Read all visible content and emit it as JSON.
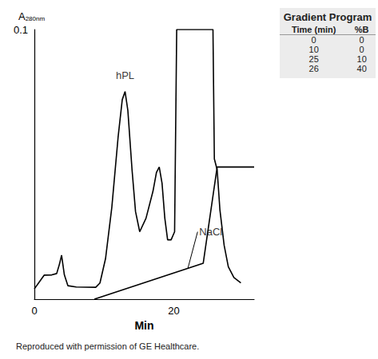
{
  "chart_data": {
    "type": "line",
    "xlabel": "Min",
    "ylabel": "A280nm",
    "xlim": [
      0,
      31.5
    ],
    "xticks": [
      0,
      20
    ],
    "ylim": [
      0,
      0.1
    ],
    "yticks": [
      0.1
    ],
    "grid": false,
    "series": [
      {
        "color": "#000000",
        "x": [
          0,
          0.6,
          1.4,
          2.5,
          3.2,
          3.6,
          3.9,
          4.3,
          4.8,
          6,
          8.8,
          9.4,
          10.2,
          11.1,
          12.0,
          12.6,
          13.0,
          13.4,
          14.0,
          14.5,
          15.1,
          16.0,
          17.0,
          17.5,
          17.9,
          18.3,
          18.7,
          19.1,
          19.6,
          20.1,
          20.4,
          25.6,
          25.8,
          26.2,
          26.6,
          27.2,
          27.8,
          28.6,
          29.6
        ],
        "values": [
          0.0038,
          0.006,
          0.0089,
          0.009,
          0.0095,
          0.013,
          0.0163,
          0.009,
          0.005,
          0.0045,
          0.0044,
          0.006,
          0.015,
          0.034,
          0.06,
          0.074,
          0.077,
          0.07,
          0.048,
          0.0325,
          0.025,
          0.03,
          0.04,
          0.047,
          0.049,
          0.043,
          0.03,
          0.022,
          0.022,
          0.025,
          0.1,
          0.1,
          0.052,
          0.048,
          0.033,
          0.02,
          0.012,
          0.008,
          0.006
        ]
      },
      {
        "color": "#000000",
        "x": [
          8.6,
          24.2,
          26.2,
          31.5
        ],
        "values": [
          0,
          0.0133,
          0.049,
          0.049
        ]
      }
    ],
    "annotations": [
      {
        "text": "hPL",
        "x": 13.0,
        "y": 0.083
      },
      {
        "text": "NaCl",
        "x": 23.4,
        "y": 0.025,
        "arrow_to": [
          22.0,
          0.0114
        ]
      }
    ]
  },
  "table": {
    "title": "Gradient Program",
    "columns": [
      "Time (min)",
      "%B"
    ],
    "rows": [
      [
        0,
        0
      ],
      [
        10,
        0
      ],
      [
        25,
        10
      ],
      [
        26,
        40
      ]
    ]
  },
  "footer": "Reproduced with permission of GE Healthcare."
}
